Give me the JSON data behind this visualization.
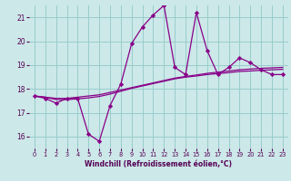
{
  "x": [
    0,
    1,
    2,
    3,
    4,
    5,
    6,
    7,
    8,
    9,
    10,
    11,
    12,
    13,
    14,
    15,
    16,
    17,
    18,
    19,
    20,
    21,
    22,
    23
  ],
  "y_main": [
    17.7,
    17.6,
    17.4,
    17.6,
    17.6,
    16.1,
    15.8,
    17.3,
    18.2,
    19.9,
    20.6,
    21.1,
    21.5,
    18.9,
    18.6,
    21.2,
    19.6,
    18.6,
    18.9,
    19.3,
    19.1,
    18.8,
    18.6,
    18.6
  ],
  "y_trend1": [
    17.7,
    17.65,
    17.6,
    17.6,
    17.65,
    17.7,
    17.75,
    17.85,
    17.95,
    18.05,
    18.15,
    18.25,
    18.35,
    18.45,
    18.52,
    18.58,
    18.65,
    18.7,
    18.75,
    18.8,
    18.83,
    18.86,
    18.88,
    18.9
  ],
  "y_trend2": [
    17.7,
    17.65,
    17.55,
    17.55,
    17.58,
    17.62,
    17.68,
    17.78,
    17.9,
    18.02,
    18.12,
    18.22,
    18.32,
    18.42,
    18.49,
    18.54,
    18.6,
    18.64,
    18.68,
    18.73,
    18.75,
    18.78,
    18.8,
    18.82
  ],
  "bg_color": "#cce8e8",
  "grid_color": "#99cccc",
  "line_color": "#880088",
  "xlabel": "Windchill (Refroidissement éolien,°C)",
  "xlim": [
    -0.5,
    23.5
  ],
  "ylim": [
    15.5,
    21.5
  ],
  "yticks": [
    16,
    17,
    18,
    19,
    20,
    21
  ],
  "xticks": [
    0,
    1,
    2,
    3,
    4,
    5,
    6,
    7,
    8,
    9,
    10,
    11,
    12,
    13,
    14,
    15,
    16,
    17,
    18,
    19,
    20,
    21,
    22,
    23
  ]
}
